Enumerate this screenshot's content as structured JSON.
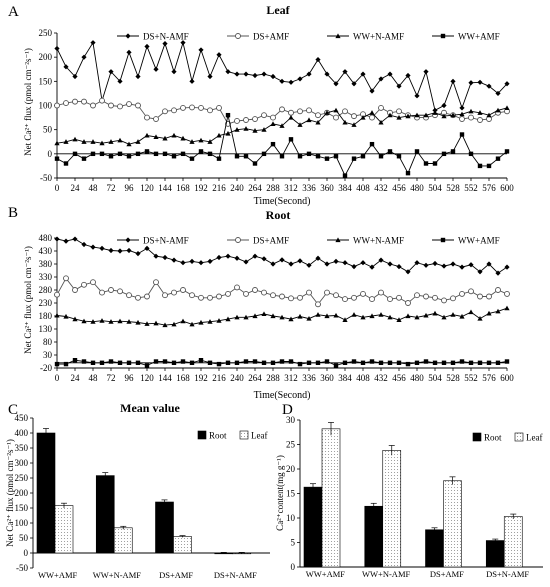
{
  "panels": {
    "A": {
      "letter": "A",
      "title": "Leaf"
    },
    "B": {
      "letter": "B",
      "title": "Root"
    },
    "C": {
      "letter": "C",
      "title": "Mean value"
    },
    "D": {
      "letter": "D",
      "title": ""
    }
  },
  "chart_data": [
    {
      "id": "A",
      "type": "line",
      "title": "Leaf",
      "xlabel": "Time(Second)",
      "ylabel": "Net Ca²⁺ flux (pmol cm⁻²s⁻¹)",
      "xlim": [
        0,
        600
      ],
      "ylim": [
        -50,
        250
      ],
      "xticks": [
        "0",
        "24",
        "48",
        "72",
        "96",
        "120",
        "144",
        "168",
        "192",
        "216",
        "240",
        "264",
        "288",
        "312",
        "336",
        "360",
        "384",
        "408",
        "432",
        "456",
        "480",
        "504",
        "528",
        "552",
        "576",
        "600"
      ],
      "yticks": [
        "-50",
        "0",
        "50",
        "100",
        "150",
        "200",
        "250"
      ],
      "legend_position": "top",
      "x": [
        0,
        12,
        24,
        36,
        48,
        60,
        72,
        84,
        96,
        108,
        120,
        132,
        144,
        156,
        168,
        180,
        192,
        204,
        216,
        228,
        240,
        252,
        264,
        276,
        288,
        300,
        312,
        324,
        336,
        348,
        360,
        372,
        384,
        396,
        408,
        420,
        432,
        444,
        456,
        468,
        480,
        492,
        504,
        516,
        528,
        540,
        552,
        564,
        576,
        588,
        600
      ],
      "series": [
        {
          "name": "DS+N-AMF",
          "marker": "diamond",
          "values": [
            218,
            180,
            160,
            200,
            230,
            110,
            170,
            150,
            210,
            160,
            222,
            175,
            228,
            170,
            230,
            150,
            215,
            160,
            205,
            170,
            165,
            165,
            162,
            165,
            160,
            150,
            148,
            155,
            165,
            195,
            165,
            145,
            170,
            145,
            165,
            130,
            155,
            165,
            140,
            162,
            120,
            170,
            90,
            100,
            150,
            95,
            147,
            148,
            140,
            125,
            145
          ]
        },
        {
          "name": "DS+AMF",
          "marker": "circle",
          "values": [
            100,
            105,
            108,
            108,
            100,
            110,
            100,
            98,
            103,
            100,
            75,
            72,
            88,
            90,
            95,
            96,
            95,
            90,
            95,
            62,
            68,
            70,
            72,
            80,
            75,
            92,
            85,
            88,
            90,
            80,
            85,
            75,
            88,
            78,
            82,
            75,
            95,
            85,
            88,
            80,
            75,
            75,
            80,
            85,
            80,
            72,
            75,
            70,
            72,
            85,
            88
          ]
        },
        {
          "name": "WW+N-AMF",
          "marker": "triangle",
          "values": [
            22,
            25,
            30,
            25,
            25,
            22,
            25,
            28,
            20,
            25,
            38,
            35,
            32,
            38,
            32,
            25,
            28,
            25,
            38,
            42,
            50,
            52,
            48,
            50,
            62,
            58,
            75,
            60,
            70,
            65,
            85,
            90,
            65,
            60,
            75,
            85,
            65,
            80,
            75,
            78,
            80,
            80,
            85,
            78,
            80,
            82,
            88,
            85,
            80,
            90,
            95
          ]
        },
        {
          "name": "WW+AMF",
          "marker": "square",
          "values": [
            -10,
            -20,
            0,
            -10,
            0,
            0,
            -5,
            0,
            -5,
            0,
            5,
            0,
            0,
            -5,
            0,
            -10,
            5,
            0,
            -10,
            80,
            -5,
            -5,
            -20,
            0,
            20,
            -5,
            30,
            -5,
            0,
            -5,
            -10,
            -5,
            -45,
            -10,
            -5,
            20,
            -5,
            5,
            -5,
            -40,
            5,
            -20,
            -20,
            0,
            5,
            40,
            0,
            -25,
            -25,
            -10,
            5
          ]
        }
      ]
    },
    {
      "id": "B",
      "type": "line",
      "title": "Root",
      "xlabel": "Time(Second)",
      "ylabel": "Net Ca²⁺ flux (pmol cm⁻²s⁻¹)",
      "xlim": [
        0,
        600
      ],
      "ylim": [
        -20,
        480
      ],
      "xticks": [
        "0",
        "24",
        "48",
        "72",
        "96",
        "120",
        "144",
        "168",
        "192",
        "216",
        "240",
        "264",
        "288",
        "312",
        "336",
        "360",
        "384",
        "408",
        "432",
        "456",
        "480",
        "504",
        "528",
        "552",
        "576",
        "600"
      ],
      "yticks": [
        "-20",
        "30",
        "80",
        "130",
        "180",
        "230",
        "280",
        "330",
        "380",
        "430",
        "480"
      ],
      "legend_position": "top",
      "x": [
        0,
        12,
        24,
        36,
        48,
        60,
        72,
        84,
        96,
        108,
        120,
        132,
        144,
        156,
        168,
        180,
        192,
        204,
        216,
        228,
        240,
        252,
        264,
        276,
        288,
        300,
        312,
        324,
        336,
        348,
        360,
        372,
        384,
        396,
        408,
        420,
        432,
        444,
        456,
        468,
        480,
        492,
        504,
        516,
        528,
        540,
        552,
        564,
        576,
        588,
        600
      ],
      "series": [
        {
          "name": "DS+N-AMF",
          "marker": "diamond",
          "values": [
            476,
            468,
            476,
            455,
            445,
            440,
            432,
            430,
            432,
            420,
            440,
            410,
            405,
            395,
            385,
            390,
            385,
            390,
            405,
            410,
            402,
            388,
            410,
            400,
            380,
            396,
            380,
            392,
            375,
            402,
            380,
            390,
            385,
            370,
            385,
            368,
            395,
            380,
            370,
            350,
            385,
            375,
            382,
            372,
            380,
            368,
            377,
            350,
            380,
            345,
            368
          ]
        },
        {
          "name": "DS+AMF",
          "marker": "circle",
          "values": [
            262,
            325,
            280,
            300,
            310,
            270,
            280,
            275,
            260,
            250,
            255,
            310,
            260,
            270,
            280,
            260,
            250,
            250,
            255,
            265,
            290,
            265,
            280,
            270,
            260,
            255,
            248,
            250,
            270,
            225,
            270,
            260,
            245,
            250,
            265,
            245,
            270,
            245,
            250,
            230,
            260,
            255,
            250,
            240,
            248,
            265,
            275,
            255,
            255,
            280,
            265
          ]
        },
        {
          "name": "WW+N-AMF",
          "marker": "triangle",
          "values": [
            182,
            178,
            168,
            160,
            158,
            162,
            158,
            160,
            158,
            155,
            150,
            152,
            145,
            148,
            160,
            148,
            155,
            158,
            162,
            168,
            175,
            175,
            180,
            188,
            180,
            175,
            168,
            178,
            170,
            185,
            180,
            182,
            165,
            185,
            175,
            180,
            185,
            175,
            165,
            180,
            175,
            182,
            190,
            175,
            185,
            178,
            195,
            170,
            190,
            198,
            210
          ]
        },
        {
          "name": "WW+AMF",
          "marker": "square",
          "values": [
            -5,
            -5,
            10,
            5,
            0,
            0,
            5,
            0,
            0,
            0,
            -10,
            5,
            5,
            0,
            5,
            0,
            10,
            0,
            -5,
            0,
            0,
            5,
            5,
            0,
            0,
            5,
            5,
            -5,
            0,
            0,
            5,
            -10,
            0,
            5,
            0,
            5,
            0,
            0,
            0,
            -5,
            0,
            5,
            0,
            0,
            0,
            5,
            0,
            0,
            0,
            0,
            5
          ]
        }
      ]
    },
    {
      "id": "C",
      "type": "bar",
      "title": "Mean value",
      "xlabel": "",
      "ylabel": "Net Ca²⁺ flux (pmol cm⁻²s⁻¹)",
      "ylim": [
        -50,
        450
      ],
      "yticks": [
        "-50",
        "0",
        "50",
        "100",
        "150",
        "200",
        "250",
        "300",
        "350",
        "400",
        "450"
      ],
      "categories": [
        "WW+AMF",
        "WW+N-AMF",
        "DS+AMF",
        "DS+N-AMF"
      ],
      "legend_position": "top-right",
      "series": [
        {
          "name": "Root",
          "fill": "#000000",
          "values": [
            400,
            258,
            170,
            0
          ],
          "errors": [
            15,
            10,
            7,
            2
          ]
        },
        {
          "name": "Leaf",
          "fill": "dotted",
          "values": [
            158,
            84,
            55,
            0
          ],
          "errors": [
            8,
            5,
            3,
            2
          ]
        }
      ]
    },
    {
      "id": "D",
      "type": "bar",
      "title": "",
      "xlabel": "",
      "ylabel": "Ca²⁺content(mg g⁻¹)",
      "ylim": [
        0,
        30
      ],
      "yticks": [
        "0",
        "5",
        "10",
        "15",
        "20",
        "25",
        "30"
      ],
      "categories": [
        "WW+AMF",
        "WW+N-AMF",
        "DS+AMF",
        "DS+N-AMF"
      ],
      "legend_position": "top-right",
      "series": [
        {
          "name": "Root",
          "fill": "#000000",
          "values": [
            16.3,
            12.4,
            7.6,
            5.4
          ],
          "errors": [
            0.7,
            0.6,
            0.4,
            0.3
          ]
        },
        {
          "name": "Leaf",
          "fill": "dotted",
          "values": [
            28.2,
            23.8,
            17.6,
            10.3
          ],
          "errors": [
            1.3,
            1.0,
            0.8,
            0.5
          ]
        }
      ]
    }
  ]
}
